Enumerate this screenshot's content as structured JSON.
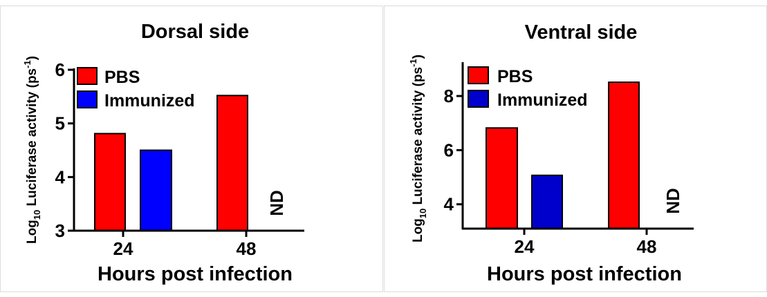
{
  "chart_data": [
    {
      "type": "bar",
      "title": "Dorsal side",
      "xlabel": "Hours post infection",
      "ylabel": {
        "prefix": "Log",
        "subscript": "10",
        "main": " Luciferase activity (ps",
        "superscript": "-1",
        "suffix": ")"
      },
      "categories": [
        "24",
        "48"
      ],
      "ylim": [
        3,
        6
      ],
      "yticks": [
        3,
        4,
        5,
        6
      ],
      "series": [
        {
          "name": "PBS",
          "values": [
            4.81,
            5.52
          ],
          "color": "#ff0000"
        },
        {
          "name": "Immunized",
          "values": [
            4.5,
            null
          ],
          "color": "#0000ff"
        }
      ],
      "annotations": [
        {
          "category": "48",
          "series": "Immunized",
          "text": "ND"
        }
      ],
      "legend": "top-left",
      "grid": false
    },
    {
      "type": "bar",
      "title": "Ventral side",
      "xlabel": "Hours post infection",
      "ylabel": {
        "prefix": "Log",
        "subscript": "10",
        "main": " Luciferase activity (ps",
        "superscript": "-1",
        "suffix": ")"
      },
      "categories": [
        "24",
        "48"
      ],
      "ylim": [
        3.1,
        9.2
      ],
      "yticks": [
        4,
        6,
        8
      ],
      "series": [
        {
          "name": "PBS",
          "values": [
            6.82,
            8.51
          ],
          "color": "#ff0000"
        },
        {
          "name": "Immunized",
          "values": [
            5.07,
            null
          ],
          "color": "#0000cc"
        }
      ],
      "annotations": [
        {
          "category": "48",
          "series": "Immunized",
          "text": "ND"
        }
      ],
      "legend": "top-left",
      "grid": false
    }
  ]
}
